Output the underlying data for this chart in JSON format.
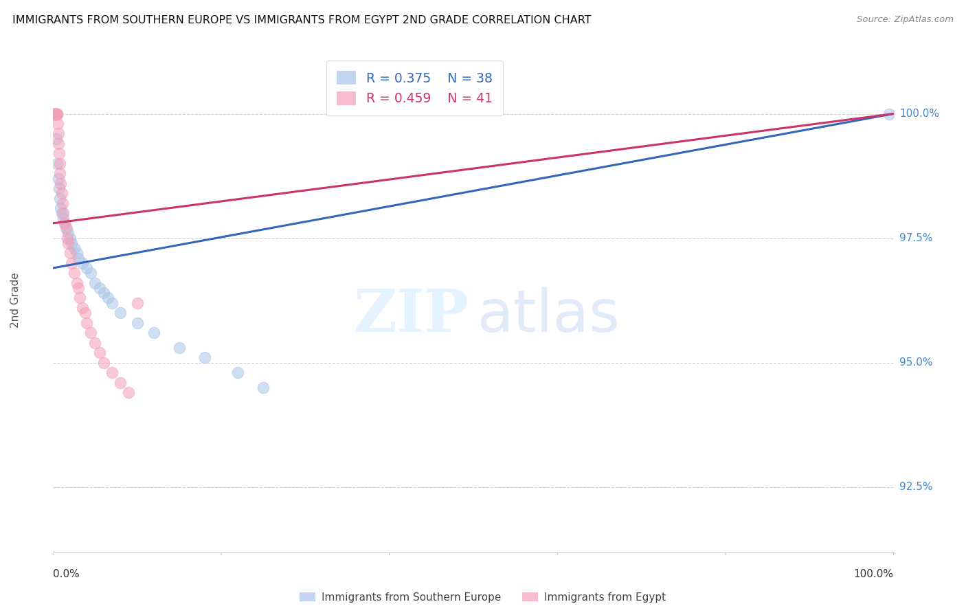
{
  "title": "IMMIGRANTS FROM SOUTHERN EUROPE VS IMMIGRANTS FROM EGYPT 2ND GRADE CORRELATION CHART",
  "source": "Source: ZipAtlas.com",
  "ylabel": "2nd Grade",
  "y_ticks": [
    92.5,
    95.0,
    97.5,
    100.0
  ],
  "y_tick_labels": [
    "92.5%",
    "95.0%",
    "97.5%",
    "100.0%"
  ],
  "x_range": [
    0.0,
    100.0
  ],
  "y_range": [
    91.2,
    101.3
  ],
  "blue_R": 0.375,
  "blue_N": 38,
  "pink_R": 0.459,
  "pink_N": 41,
  "blue_color": "#aac4e8",
  "pink_color": "#f4a0b8",
  "trend_blue": "#3366bb",
  "trend_pink": "#cc3366",
  "blue_scatter_x": [
    0.1,
    0.15,
    0.2,
    0.25,
    0.3,
    0.35,
    0.4,
    0.5,
    0.6,
    0.7,
    0.8,
    0.9,
    1.0,
    1.2,
    1.4,
    1.6,
    1.8,
    2.0,
    2.2,
    2.5,
    2.8,
    3.0,
    3.5,
    4.0,
    4.5,
    5.0,
    5.5,
    6.0,
    6.5,
    7.0,
    8.0,
    10.0,
    12.0,
    15.0,
    18.0,
    22.0,
    25.0,
    99.5
  ],
  "blue_scatter_y": [
    100.0,
    100.0,
    100.0,
    100.0,
    100.0,
    100.0,
    99.5,
    99.0,
    98.7,
    98.5,
    98.3,
    98.1,
    98.0,
    97.9,
    97.8,
    97.7,
    97.6,
    97.5,
    97.4,
    97.3,
    97.2,
    97.1,
    97.0,
    96.9,
    96.8,
    96.6,
    96.5,
    96.4,
    96.3,
    96.2,
    96.0,
    95.8,
    95.6,
    95.3,
    95.1,
    94.8,
    94.5,
    100.0
  ],
  "pink_scatter_x": [
    0.05,
    0.1,
    0.15,
    0.2,
    0.25,
    0.3,
    0.35,
    0.4,
    0.45,
    0.5,
    0.55,
    0.6,
    0.65,
    0.7,
    0.75,
    0.8,
    0.9,
    1.0,
    1.1,
    1.2,
    1.4,
    1.5,
    1.7,
    1.8,
    2.0,
    2.2,
    2.5,
    2.8,
    3.0,
    3.2,
    3.5,
    3.8,
    4.0,
    4.5,
    5.0,
    5.5,
    6.0,
    7.0,
    8.0,
    9.0,
    10.0
  ],
  "pink_scatter_y": [
    100.0,
    100.0,
    100.0,
    100.0,
    100.0,
    100.0,
    100.0,
    100.0,
    100.0,
    100.0,
    99.8,
    99.6,
    99.4,
    99.2,
    99.0,
    98.8,
    98.6,
    98.4,
    98.2,
    98.0,
    97.8,
    97.7,
    97.5,
    97.4,
    97.2,
    97.0,
    96.8,
    96.6,
    96.5,
    96.3,
    96.1,
    96.0,
    95.8,
    95.6,
    95.4,
    95.2,
    95.0,
    94.8,
    94.6,
    94.4,
    96.2
  ],
  "blue_trend_x": [
    0.0,
    100.0
  ],
  "blue_trend_y": [
    96.9,
    100.0
  ],
  "pink_trend_x": [
    0.0,
    100.0
  ],
  "pink_trend_y": [
    97.8,
    100.0
  ]
}
